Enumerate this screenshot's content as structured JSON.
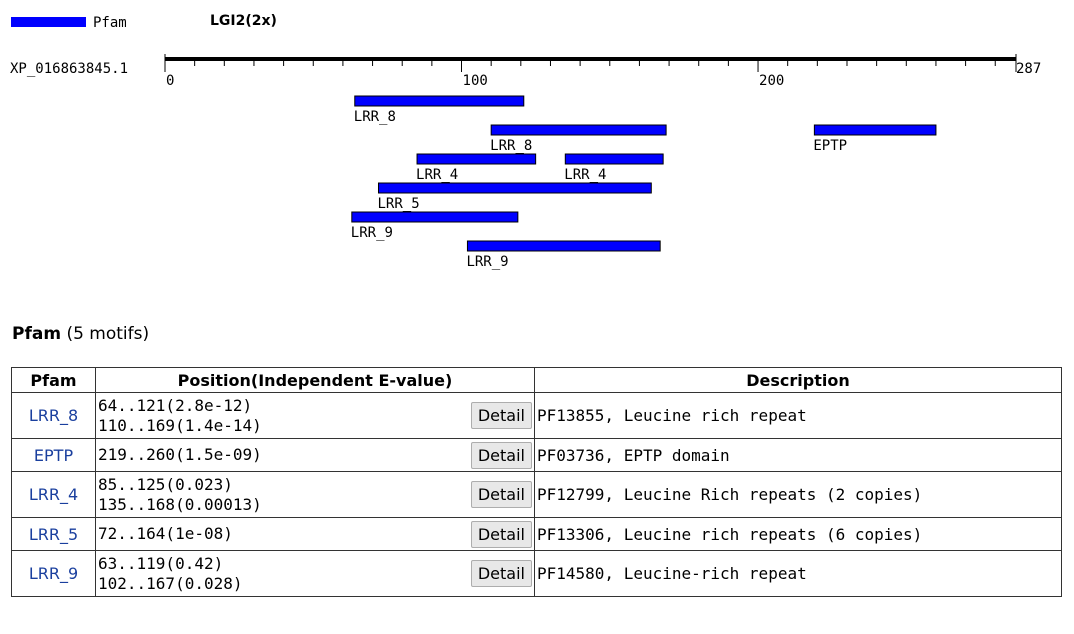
{
  "legend": {
    "label": "Pfam",
    "color": "#0000ff"
  },
  "title": "LGI2(2x)",
  "sequence": {
    "id": "XP_016863845.1",
    "length_label": "287",
    "length": 287,
    "ticks": [
      {
        "value": 0,
        "label": "0"
      },
      {
        "value": 100,
        "label": "100"
      },
      {
        "value": 200,
        "label": "200"
      }
    ]
  },
  "chart_data": {
    "type": "bar",
    "domains": [
      {
        "name": "LRR_8",
        "start": 64,
        "end": 121,
        "row": 0
      },
      {
        "name": "LRR_8",
        "start": 110,
        "end": 169,
        "row": 1
      },
      {
        "name": "EPTP",
        "start": 219,
        "end": 260,
        "row": 1
      },
      {
        "name": "LRR_4",
        "start": 85,
        "end": 125,
        "row": 2
      },
      {
        "name": "LRR_4",
        "start": 135,
        "end": 168,
        "row": 2
      },
      {
        "name": "LRR_5",
        "start": 72,
        "end": 164,
        "row": 3
      },
      {
        "name": "LRR_9",
        "start": 63,
        "end": 119,
        "row": 4
      },
      {
        "name": "LRR_9",
        "start": 102,
        "end": 167,
        "row": 5
      }
    ]
  },
  "section": {
    "title": "Pfam",
    "count_text": "(5 motifs)"
  },
  "table": {
    "headers": {
      "pfam": "Pfam",
      "position": "Position(Independent E-value)",
      "description": "Description"
    },
    "detail_label": "Detail",
    "rows": [
      {
        "pfam": "LRR_8",
        "positions": [
          "64..121(2.8e-12)",
          "110..169(1.4e-14)"
        ],
        "description": "PF13855, Leucine rich repeat"
      },
      {
        "pfam": "EPTP",
        "positions": [
          "219..260(1.5e-09)"
        ],
        "description": "PF03736, EPTP domain"
      },
      {
        "pfam": "LRR_4",
        "positions": [
          "85..125(0.023)",
          "135..168(0.00013)"
        ],
        "description": "PF12799, Leucine Rich repeats (2 copies)"
      },
      {
        "pfam": "LRR_5",
        "positions": [
          "72..164(1e-08)"
        ],
        "description": "PF13306, Leucine rich repeats (6 copies)"
      },
      {
        "pfam": "LRR_9",
        "positions": [
          "63..119(0.42)",
          "102..167(0.028)"
        ],
        "description": "PF14580, Leucine-rich repeat"
      }
    ]
  }
}
